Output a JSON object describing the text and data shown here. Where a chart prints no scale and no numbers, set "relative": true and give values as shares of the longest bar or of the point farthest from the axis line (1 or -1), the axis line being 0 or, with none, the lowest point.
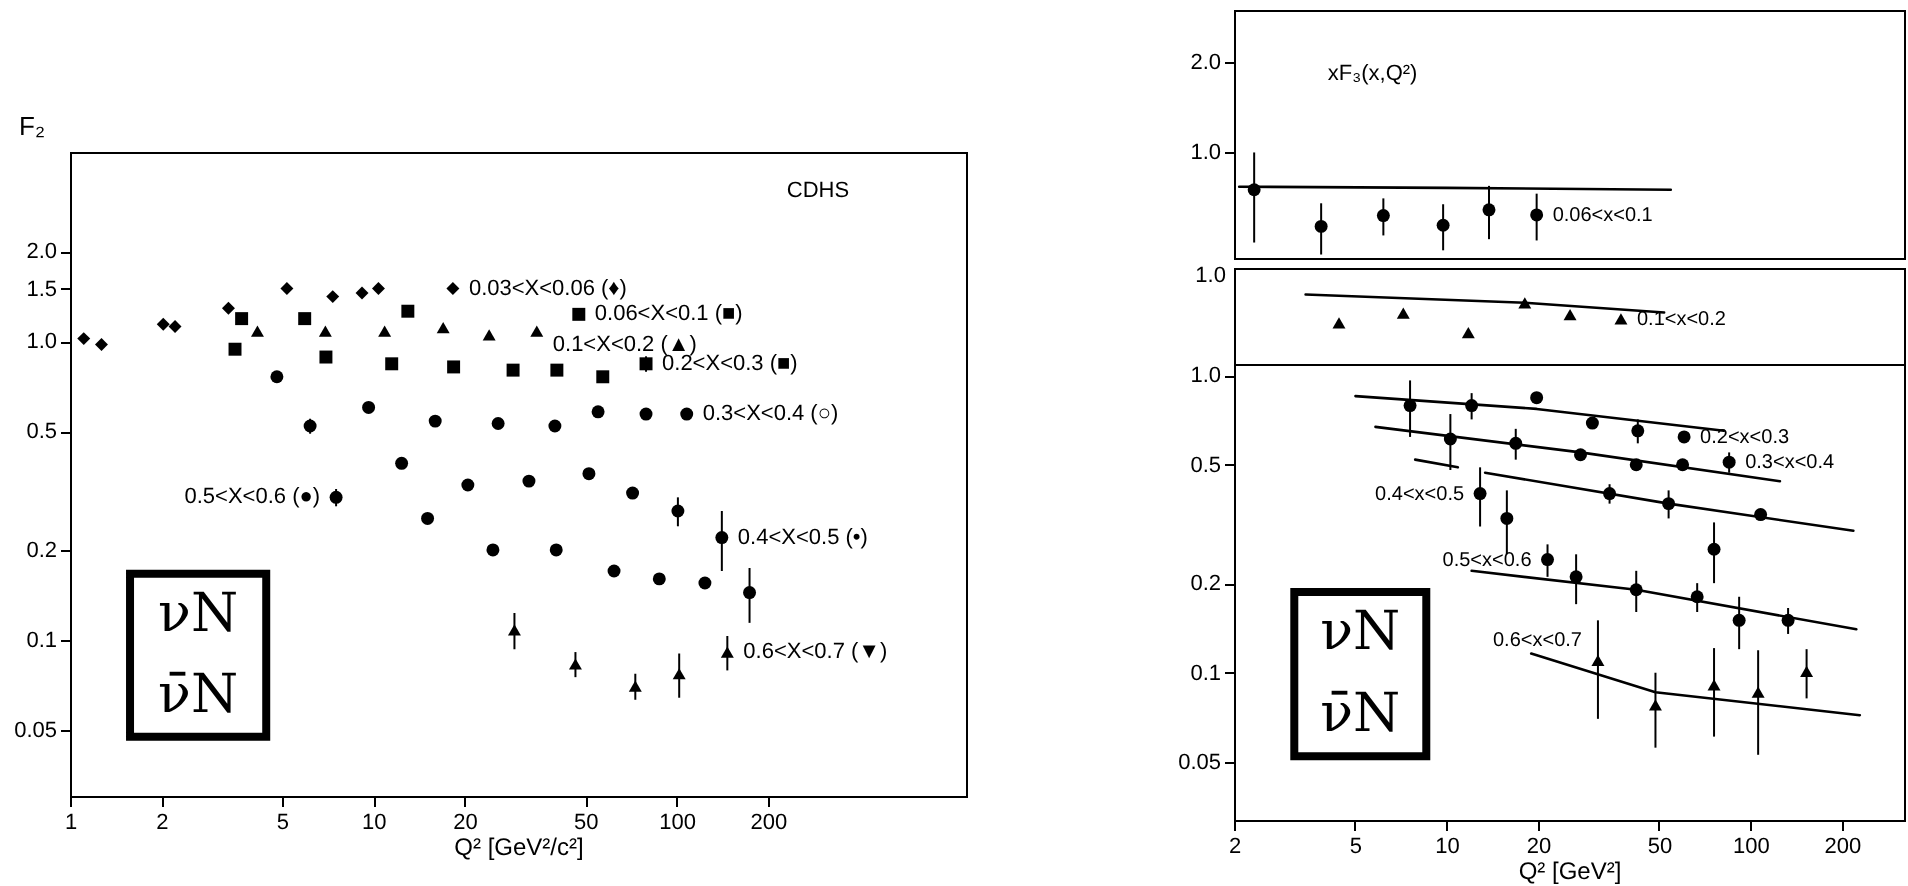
{
  "chart_data": [
    {
      "type": "scatter",
      "xlabel": "Q² [GeV²/c²]",
      "ylabel": "F₂",
      "log": "xy",
      "grid": false,
      "xlim": [
        1,
        900
      ],
      "ylim": [
        0.03,
        4.3
      ],
      "xticks": [
        1,
        2,
        5,
        10,
        20,
        50,
        100,
        200
      ],
      "yticks": [
        {
          "value": 0.05,
          "label": "0.05"
        },
        {
          "value": 0.1,
          "label": "0.1"
        },
        {
          "value": 0.2,
          "label": "0.2"
        },
        {
          "value": 0.5,
          "label": "0.5"
        },
        {
          "value": 1,
          "label": "1.0"
        },
        {
          "value": 1.5,
          "label": "1.5"
        },
        {
          "value": 2,
          "label": "2.0"
        }
      ],
      "annotations": [
        "CDHS",
        "νN",
        "ν̄N"
      ],
      "series": [
        {
          "name": "0.03<X<0.06 (♦)",
          "type": "scatter",
          "marker": "diamond",
          "color": "#000000",
          "x": [
            1.11,
            1.27,
            2.03,
            2.22,
            3.33,
            5.19,
            7.35,
            9.18,
            10.4,
            18.3
          ],
          "values": [
            1.02,
            0.975,
            1.14,
            1.12,
            1.29,
            1.5,
            1.41,
            1.45,
            1.5,
            1.5
          ]
        },
        {
          "name": "0.06<X<0.1 (■)",
          "type": "scatter",
          "marker": "square",
          "color": "#000000",
          "x": [
            3.68,
            5.94,
            13.0,
            47.6
          ],
          "values": [
            1.19,
            1.19,
            1.26,
            1.23
          ]
        },
        {
          "name": "0.1<X<0.2 (▲)",
          "type": "scatter",
          "marker": "triangle",
          "color": "#000000",
          "x": [
            4.15,
            6.95,
            10.9,
            17.0,
            24.1,
            34.6
          ],
          "values": [
            1.08,
            1.08,
            1.08,
            1.11,
            1.05,
            1.08
          ]
        },
        {
          "name": "0.2<X<0.3 (■)",
          "type": "scatter",
          "marker": "square",
          "color": "#000000",
          "x": [
            3.5,
            6.98,
            11.5,
            18.4,
            28.9,
            40.3,
            57.1,
            79.3
          ],
          "values": [
            0.94,
            0.885,
            0.84,
            0.82,
            0.8,
            0.8,
            0.76,
            0.84
          ],
          "errors": [
            null,
            null,
            null,
            null,
            null,
            null,
            null,
            0.05
          ]
        },
        {
          "name": "0.3<X<0.4 (○)",
          "type": "scatter",
          "marker": "circle",
          "color": "#000000",
          "x": [
            4.81,
            9.65,
            16.0,
            25.8,
            39.7,
            55.1,
            79.3,
            108
          ],
          "values": [
            0.76,
            0.6,
            0.54,
            0.53,
            0.52,
            0.58,
            0.57,
            0.57
          ]
        },
        {
          "name": "0.4<X<0.5 (•)",
          "type": "scatter",
          "marker": "circle",
          "color": "#000000",
          "x": [
            6.19,
            12.4,
            20.5,
            32.6,
            51.4,
            71.6,
            101,
            141
          ],
          "values": [
            0.52,
            0.39,
            0.33,
            0.34,
            0.36,
            0.31,
            0.27,
            0.22
          ],
          "errors": [
            0.03,
            null,
            null,
            null,
            null,
            null,
            0.03,
            0.05
          ]
        },
        {
          "name": "0.5<X<0.6 (●)",
          "type": "scatter",
          "marker": "circle",
          "color": "#000000",
          "x": [
            7.54,
            15.1,
            24.8,
            40.1,
            62.2,
            87.7,
            124,
            174
          ],
          "values": [
            0.3,
            0.255,
            0.2,
            0.2,
            0.17,
            0.16,
            0.155,
            0.144
          ],
          "errors": [
            0.02,
            null,
            null,
            null,
            null,
            null,
            null,
            0.03
          ]
        },
        {
          "name": "0.6<X<0.7 (▼)",
          "type": "scatter",
          "marker": "triangle",
          "color": "#000000",
          "x": [
            29.2,
            46.4,
            73.1,
            102,
            147
          ],
          "values": [
            0.108,
            0.083,
            0.07,
            0.077,
            0.091
          ],
          "errors": [
            0.015,
            0.008,
            0.007,
            0.013,
            0.012
          ]
        }
      ]
    },
    {
      "type": "scatter",
      "log": "xy",
      "grid": false,
      "tick_labels": "y",
      "xlim": [
        2,
        320
      ],
      "ylim": [
        0.44,
        3.0
      ],
      "xticks": [
        2,
        5,
        10,
        20,
        50,
        100,
        200
      ],
      "yticks": [
        {
          "value": 1,
          "label": "1.0"
        },
        {
          "value": 2,
          "label": "2.0"
        }
      ],
      "annotations": [
        "xF₃(x,Q²)"
      ],
      "series": [
        {
          "name": "0.06<x<0.1",
          "type": "scatter",
          "marker": "circle",
          "color": "#000000",
          "x": [
            2.33,
            3.87,
            6.2,
            9.75,
            13.8,
            19.8
          ],
          "values": [
            0.746,
            0.562,
            0.611,
            0.567,
            0.639,
            0.614
          ],
          "errors": [
            0.25,
            0.11,
            0.087,
            0.1,
            0.13,
            0.11
          ]
        },
        {
          "type": "line",
          "color": "#000000",
          "x": [
            2.08,
            10,
            54.7
          ],
          "values": [
            0.764,
            0.757,
            0.746
          ]
        }
      ]
    },
    {
      "type": "scatter",
      "log": "x",
      "relative": true,
      "grid": false,
      "tick_labels": false,
      "xlim": [
        2,
        320
      ],
      "xticks": [
        2,
        5,
        10,
        20,
        50,
        100,
        200
      ],
      "annotations": [
        "1.0"
      ],
      "series": [
        {
          "name": "0.1<x<0.2",
          "type": "scatter",
          "marker": "triangle",
          "color": "#000000",
          "x": [
            4.43,
            7.21,
            11.8,
            18.1,
            25.5,
            37.5
          ],
          "values": [
            0.59,
            0.73,
            0.45,
            0.88,
            0.71,
            0.65
          ]
        },
        {
          "type": "line",
          "color": "#000000",
          "x": [
            3.44,
            18.1,
            52.0
          ],
          "values": [
            1,
            0.88,
            0.74
          ]
        }
      ]
    },
    {
      "type": "scatter",
      "xlabel": "Q² [GeV²]",
      "log": "xy",
      "grid": false,
      "xlim": [
        2,
        320
      ],
      "ylim": [
        0.032,
        1.09
      ],
      "xticks": [
        2,
        5,
        10,
        20,
        50,
        100,
        200
      ],
      "yticks": [
        {
          "value": 0.05,
          "label": "0.05"
        },
        {
          "value": 0.1,
          "label": "0.1"
        },
        {
          "value": 0.2,
          "label": "0.2"
        },
        {
          "value": 0.5,
          "label": "0.5"
        },
        {
          "value": 1,
          "label": "1.0"
        }
      ],
      "annotations": [
        "νN",
        "ν̄N"
      ],
      "series": [
        {
          "name": "0.2<x<0.3",
          "type": "scatter",
          "marker": "circle",
          "color": "#000000",
          "x": [
            7.59,
            12.1,
            19.8,
            30.2,
            42.6,
            60.5
          ],
          "values": [
            0.79,
            0.79,
            0.84,
            0.69,
            0.65,
            0.62
          ],
          "errors": [
            0.17,
            0.08,
            null,
            null,
            0.06,
            null
          ]
        },
        {
          "type": "line",
          "color": "#000000",
          "x": [
            5.02,
            19.8,
            81.8
          ],
          "values": [
            0.85,
            0.77,
            0.65
          ]
        },
        {
          "name": "0.3<x<0.4",
          "type": "scatter",
          "marker": "circle",
          "color": "#000000",
          "x": [
            10.3,
            16.9,
            27.6,
            42.1,
            59.8,
            85.1
          ],
          "values": [
            0.61,
            0.59,
            0.54,
            0.5,
            0.5,
            0.51
          ],
          "errors": [
            0.13,
            0.07,
            null,
            null,
            null,
            0.04
          ]
        },
        {
          "type": "line",
          "color": "#000000",
          "x": [
            5.84,
            27.6,
            125
          ],
          "values": [
            0.67,
            0.55,
            0.44
          ]
        },
        {
          "name": "0.4<x<0.5",
          "type": "scatter",
          "marker": "circle",
          "color": "#000000",
          "x": [
            12.9,
            15.8,
            34.4,
            53.8,
            75.9,
            108
          ],
          "values": [
            0.4,
            0.33,
            0.4,
            0.37,
            0.26,
            0.34
          ],
          "errors": [
            0.09,
            0.08,
            0.03,
            0.04,
            0.06,
            null
          ]
        },
        {
          "type": "line",
          "color": "#000000",
          "x": [
            7.89,
            10.9,
            12,
            13.4,
            53.8,
            218
          ],
          "values": [
            0.52,
            0.49,
            null,
            0.47,
            0.37,
            0.3
          ]
        },
        {
          "name": "0.5<x<0.6",
          "type": "scatter",
          "marker": "circle",
          "color": "#000000",
          "x": [
            21.5,
            26.7,
            42.1,
            66.8,
            91.8,
            133
          ],
          "values": [
            0.24,
            0.21,
            0.19,
            0.18,
            0.15,
            0.15
          ],
          "errors": [
            0.03,
            0.04,
            0.03,
            0.02,
            0.03,
            0.015
          ]
        },
        {
          "type": "line",
          "color": "#000000",
          "x": [
            12.1,
            42.1,
            223
          ],
          "values": [
            0.22,
            0.19,
            0.14
          ]
        },
        {
          "name": "0.6<x<0.7",
          "type": "scatter",
          "marker": "triangle",
          "color": "#000000",
          "x": [
            31.5,
            48.7,
            75.9,
            106,
            153
          ],
          "values": [
            0.11,
            0.078,
            0.091,
            0.086,
            0.101
          ],
          "errors": [
            0.04,
            0.022,
            0.03,
            0.033,
            0.019
          ]
        },
        {
          "type": "line",
          "color": "#000000",
          "x": [
            19.0,
            48.7,
            229
          ],
          "values": [
            0.116,
            0.086,
            0.072
          ]
        }
      ]
    }
  ]
}
